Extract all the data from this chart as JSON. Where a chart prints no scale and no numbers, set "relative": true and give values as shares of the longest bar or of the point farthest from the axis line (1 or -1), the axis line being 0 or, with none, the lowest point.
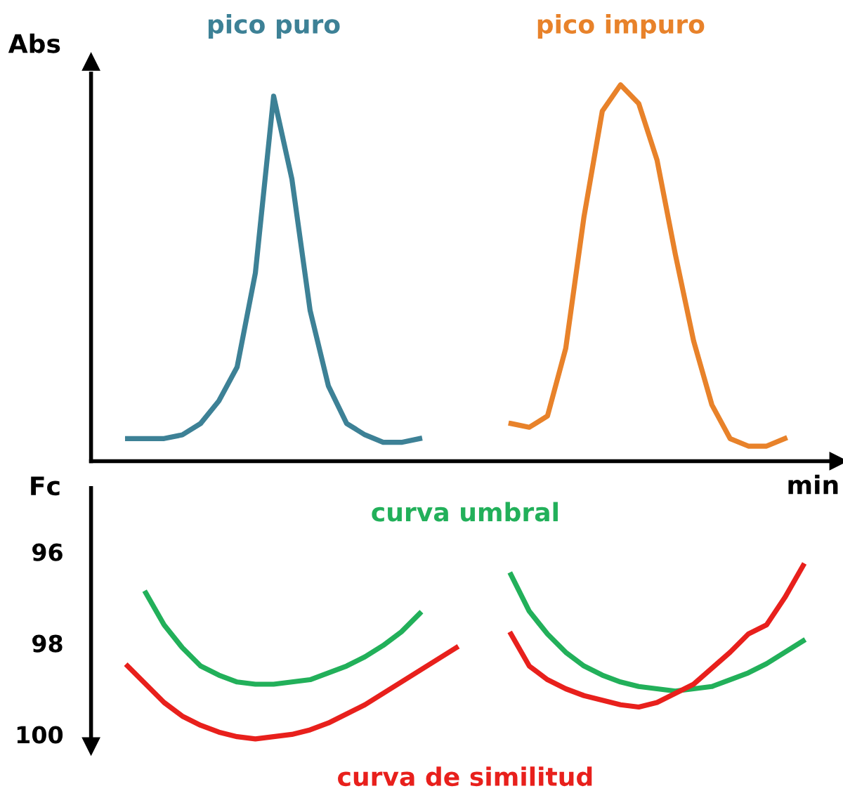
{
  "chart_data": [
    {
      "type": "line",
      "relative": true,
      "ylabel": "Abs",
      "xlabel": "min",
      "tick_labels": false,
      "legend": false,
      "grid": false,
      "marker": "none",
      "line_style": "solid",
      "categories": [
        null,
        null,
        null,
        null,
        null,
        null,
        null,
        null,
        null,
        null,
        null,
        null,
        null,
        null,
        null,
        null,
        null,
        null,
        null,
        null,
        null,
        null,
        null,
        null,
        null,
        null,
        null,
        null,
        null,
        null,
        null,
        null,
        null,
        null,
        null,
        null,
        null,
        null,
        null,
        null,
        null,
        null
      ],
      "series": [
        {
          "name": "pico puro",
          "color": "#3d8196",
          "values": [
            null,
            null,
            0.06,
            0.06,
            0.06,
            0.07,
            0.1,
            0.16,
            0.25,
            0.5,
            0.97,
            0.75,
            0.4,
            0.2,
            0.1,
            0.07,
            0.05,
            0.05,
            0.06,
            null,
            null,
            null,
            null,
            null,
            null,
            null,
            null,
            null,
            null,
            null,
            null,
            null,
            null,
            null,
            null,
            null,
            null,
            null,
            null,
            null,
            null,
            null
          ]
        },
        {
          "name": "pico impuro",
          "color": "#e8822a",
          "values": [
            null,
            null,
            null,
            null,
            null,
            null,
            null,
            null,
            null,
            null,
            null,
            null,
            null,
            null,
            null,
            null,
            null,
            null,
            null,
            null,
            null,
            null,
            null,
            0.1,
            0.09,
            0.12,
            0.3,
            0.65,
            0.93,
            1.0,
            0.95,
            0.8,
            0.55,
            0.32,
            0.15,
            0.06,
            0.04,
            0.04,
            0.06,
            null,
            null,
            null
          ]
        }
      ]
    },
    {
      "type": "line",
      "ylabel": "Fc",
      "ylim": [
        100.2,
        94.6
      ],
      "yticks": [
        96,
        98,
        100
      ],
      "tick_labels": "y",
      "legend": false,
      "grid": false,
      "marker": "none",
      "line_style": "solid",
      "categories": [
        null,
        null,
        null,
        null,
        null,
        null,
        null,
        null,
        null,
        null,
        null,
        null,
        null,
        null,
        null,
        null,
        null,
        null,
        null,
        null,
        null,
        null,
        null,
        null,
        null,
        null,
        null,
        null,
        null,
        null,
        null,
        null,
        null,
        null,
        null,
        null,
        null,
        null,
        null,
        null,
        null,
        null
      ],
      "series": [
        {
          "name": "curva umbral",
          "color": "#22b05a",
          "values": [
            null,
            null,
            null,
            96.9,
            97.6,
            98.1,
            98.5,
            98.7,
            98.85,
            98.9,
            98.9,
            98.85,
            98.8,
            98.65,
            98.5,
            98.3,
            98.05,
            97.75,
            97.35,
            null,
            null,
            null,
            null,
            96.5,
            97.3,
            97.8,
            98.2,
            98.5,
            98.7,
            98.85,
            98.95,
            99.0,
            99.05,
            99.0,
            98.95,
            98.8,
            98.65,
            98.45,
            98.2,
            97.95,
            null,
            null
          ]
        },
        {
          "name": "curva de similitud",
          "color": "#e8201c",
          "values": [
            null,
            null,
            98.5,
            98.9,
            99.3,
            99.6,
            99.8,
            99.95,
            100.05,
            100.1,
            100.05,
            100.0,
            99.9,
            99.75,
            99.55,
            99.35,
            99.1,
            98.85,
            98.6,
            98.35,
            98.1,
            null,
            null,
            97.8,
            98.5,
            98.8,
            99.0,
            99.15,
            99.25,
            99.35,
            99.4,
            99.3,
            99.1,
            98.9,
            98.55,
            98.2,
            97.8,
            97.6,
            97.0,
            96.3,
            null,
            null
          ]
        }
      ]
    }
  ]
}
